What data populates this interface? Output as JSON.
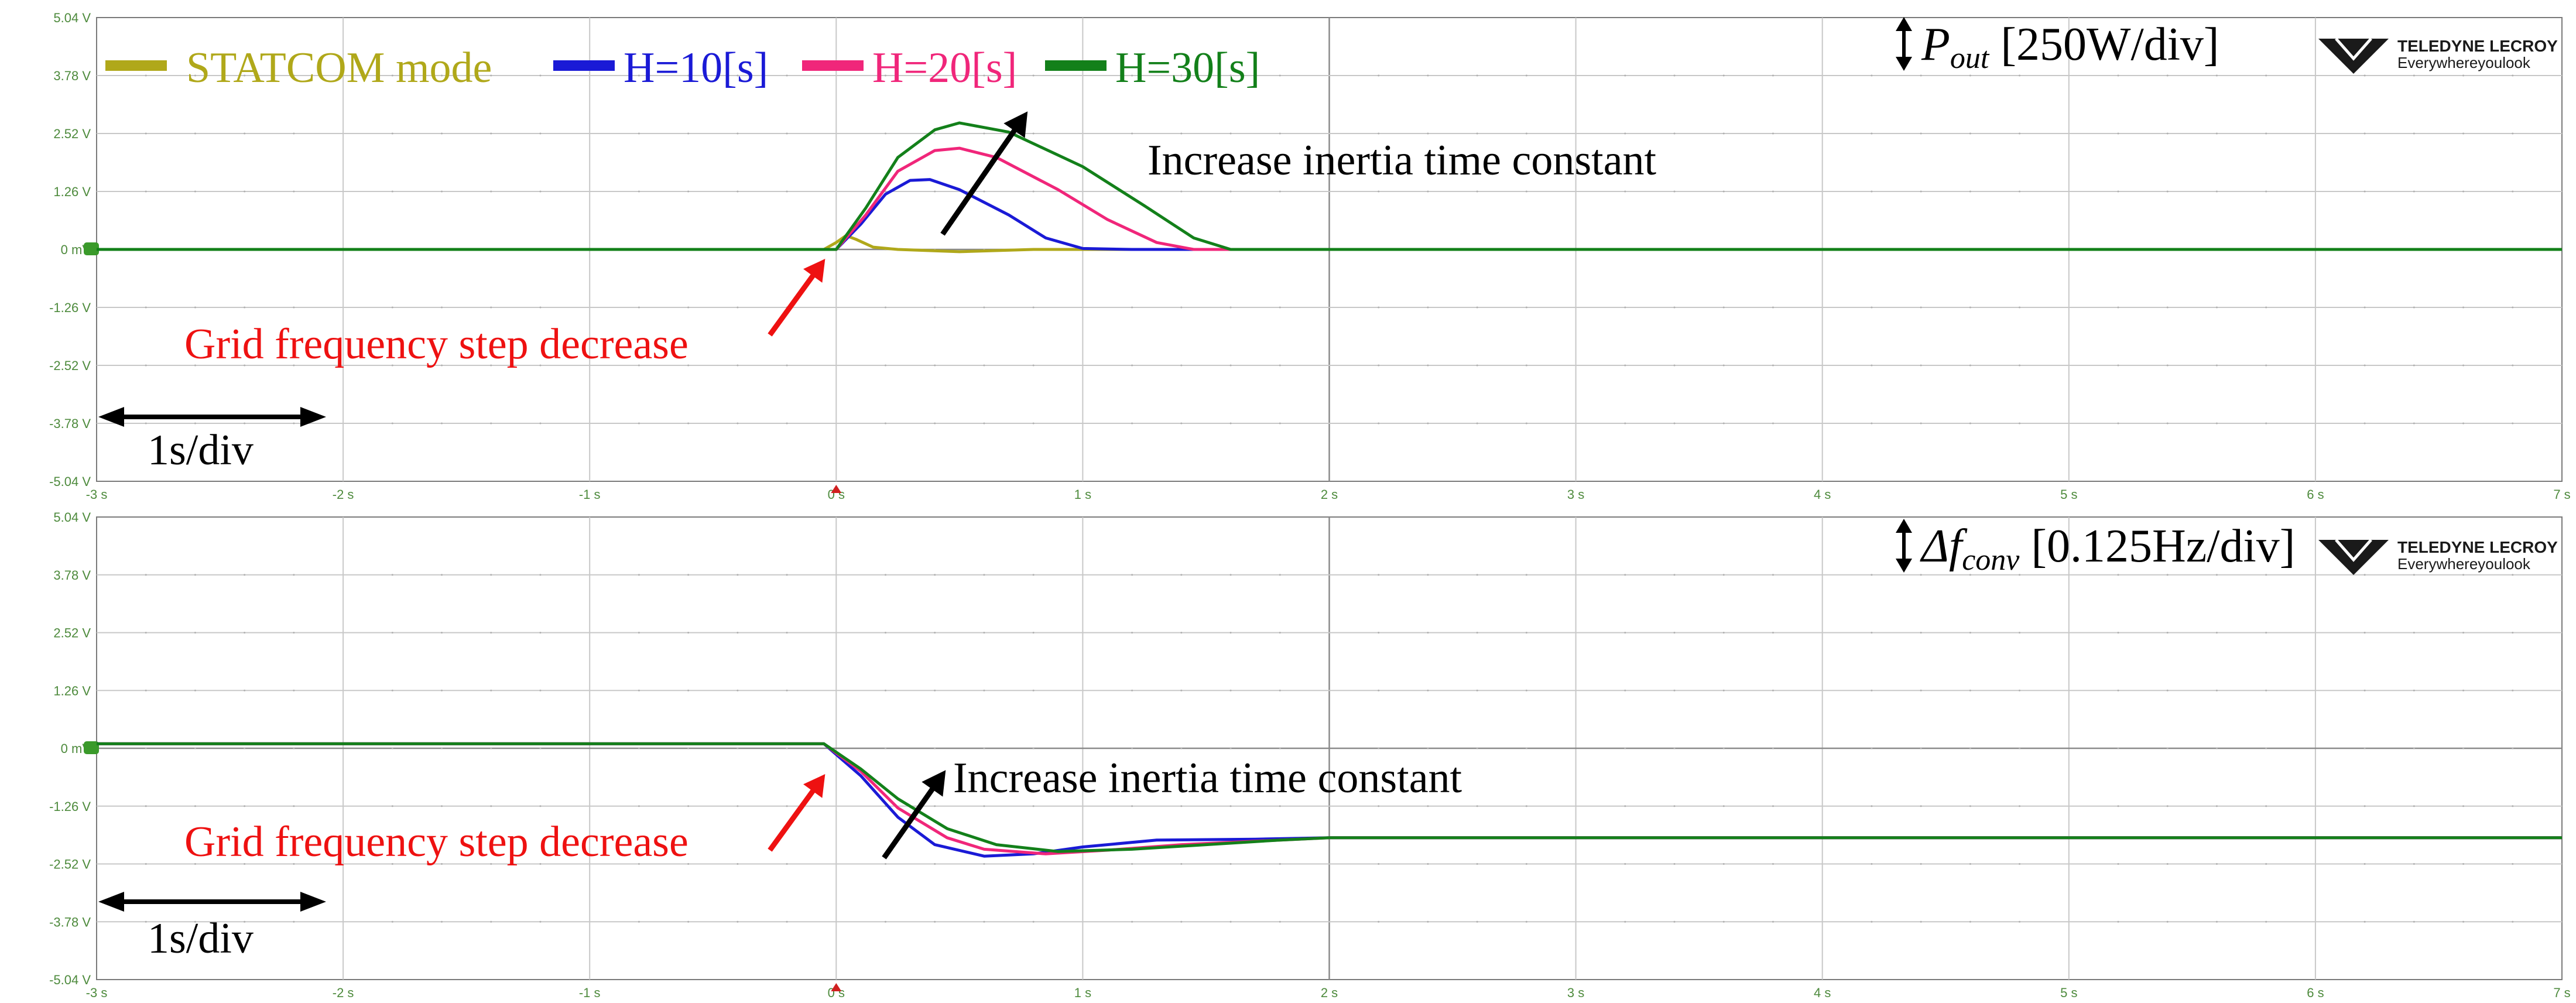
{
  "colors": {
    "statcom": "#b0a81a",
    "h10": "#1a1ad6",
    "h20": "#f0267a",
    "h30": "#13801a",
    "red_annotation": "#ee1111",
    "tick_labels": "#4d8a3c",
    "grid": "#c8c8c8",
    "axis": "#7a7a7a"
  },
  "legend": [
    {
      "label": "STATCOM mode",
      "color": "#b0a81a"
    },
    {
      "label": "H=10[s]",
      "color": "#1a1ad6"
    },
    {
      "label": "H=20[s]",
      "color": "#f0267a"
    },
    {
      "label": "H=30[s]",
      "color": "#13801a"
    }
  ],
  "logo": {
    "brand": "TELEDYNE LECROY",
    "tagline": "Everywhereyoulook"
  },
  "chart_data": [
    {
      "type": "line",
      "panel": "top",
      "scale_symbol": "P",
      "scale_subscript": "out",
      "scale_text": "[250W/div]",
      "x_ticks": [
        "-3 s",
        "-2 s",
        "-1 s",
        "0 s",
        "1 s",
        "2 s",
        "3 s",
        "4 s",
        "5 s",
        "6 s",
        "7 s"
      ],
      "y_ticks": [
        "5.04 V",
        "3.78 V",
        "2.52 V",
        "1.26 V",
        "0 mV",
        "-1.26 V",
        "-2.52 V",
        "-3.78 V",
        "-5.04 V"
      ],
      "xlim": [
        -3,
        7
      ],
      "ylim": [
        -5.04,
        5.04
      ],
      "annotations": {
        "inertia": "Increase inertia time constant",
        "grid_step": "Grid frequency step decrease",
        "timebase": "1s/div"
      },
      "series": [
        {
          "name": "STATCOM mode",
          "color": "#b0a81a",
          "points": [
            [
              -3,
              0
            ],
            [
              -0.05,
              0
            ],
            [
              0,
              0.15
            ],
            [
              0.04,
              0.3
            ],
            [
              0.08,
              0.22
            ],
            [
              0.15,
              0.05
            ],
            [
              0.25,
              0
            ],
            [
              0.5,
              -0.05
            ],
            [
              0.8,
              0
            ],
            [
              7,
              0
            ]
          ]
        },
        {
          "name": "H=10[s]",
          "color": "#1a1ad6",
          "points": [
            [
              -3,
              0
            ],
            [
              0,
              0
            ],
            [
              0.1,
              0.55
            ],
            [
              0.2,
              1.2
            ],
            [
              0.3,
              1.5
            ],
            [
              0.38,
              1.52
            ],
            [
              0.5,
              1.3
            ],
            [
              0.7,
              0.75
            ],
            [
              0.85,
              0.25
            ],
            [
              1.0,
              0.02
            ],
            [
              1.2,
              0
            ],
            [
              7,
              0
            ]
          ]
        },
        {
          "name": "H=20[s]",
          "color": "#f0267a",
          "points": [
            [
              -3,
              0
            ],
            [
              0,
              0
            ],
            [
              0.12,
              0.75
            ],
            [
              0.25,
              1.7
            ],
            [
              0.4,
              2.15
            ],
            [
              0.5,
              2.2
            ],
            [
              0.65,
              2.0
            ],
            [
              0.9,
              1.3
            ],
            [
              1.1,
              0.65
            ],
            [
              1.3,
              0.15
            ],
            [
              1.45,
              0
            ],
            [
              7,
              0
            ]
          ]
        },
        {
          "name": "H=30[s]",
          "color": "#13801a",
          "points": [
            [
              -3,
              0
            ],
            [
              0,
              0
            ],
            [
              0.12,
              0.9
            ],
            [
              0.25,
              2.0
            ],
            [
              0.4,
              2.6
            ],
            [
              0.5,
              2.75
            ],
            [
              0.7,
              2.55
            ],
            [
              1.0,
              1.8
            ],
            [
              1.25,
              0.95
            ],
            [
              1.45,
              0.25
            ],
            [
              1.6,
              0
            ],
            [
              7,
              0
            ]
          ]
        }
      ]
    },
    {
      "type": "line",
      "panel": "bottom",
      "scale_symbol": "Δf",
      "scale_subscript": "conv",
      "scale_text": "[0.125Hz/div]",
      "x_ticks": [
        "-3 s",
        "-2 s",
        "-1 s",
        "0 s",
        "1 s",
        "2 s",
        "3 s",
        "4 s",
        "5 s",
        "6 s",
        "7 s"
      ],
      "y_ticks": [
        "5.04 V",
        "3.78 V",
        "2.52 V",
        "1.26 V",
        "0 mV",
        "-1.26 V",
        "-2.52 V",
        "-3.78 V",
        "-5.04 V"
      ],
      "xlim": [
        -3,
        7
      ],
      "ylim": [
        -5.04,
        5.04
      ],
      "annotations": {
        "inertia": "Increase inertia time constant",
        "grid_step": "Grid frequency step decrease",
        "timebase": "1s/div"
      },
      "series": [
        {
          "name": "H=10[s]",
          "color": "#1a1ad6",
          "points": [
            [
              -3,
              0.1
            ],
            [
              -0.05,
              0.1
            ],
            [
              0.1,
              -0.6
            ],
            [
              0.25,
              -1.5
            ],
            [
              0.4,
              -2.1
            ],
            [
              0.6,
              -2.35
            ],
            [
              0.8,
              -2.3
            ],
            [
              1.0,
              -2.15
            ],
            [
              1.3,
              -2.0
            ],
            [
              1.7,
              -1.98
            ],
            [
              2,
              -1.95
            ],
            [
              7,
              -1.95
            ]
          ]
        },
        {
          "name": "H=20[s]",
          "color": "#f0267a",
          "points": [
            [
              -3,
              0.1
            ],
            [
              -0.05,
              0.1
            ],
            [
              0.1,
              -0.5
            ],
            [
              0.25,
              -1.3
            ],
            [
              0.45,
              -1.95
            ],
            [
              0.6,
              -2.2
            ],
            [
              0.85,
              -2.3
            ],
            [
              1.1,
              -2.22
            ],
            [
              1.4,
              -2.1
            ],
            [
              1.8,
              -2.0
            ],
            [
              2,
              -1.95
            ],
            [
              7,
              -1.95
            ]
          ]
        },
        {
          "name": "H=30[s]",
          "color": "#13801a",
          "points": [
            [
              -3,
              0.1
            ],
            [
              -0.05,
              0.1
            ],
            [
              0.1,
              -0.45
            ],
            [
              0.25,
              -1.1
            ],
            [
              0.45,
              -1.75
            ],
            [
              0.65,
              -2.1
            ],
            [
              0.9,
              -2.25
            ],
            [
              1.2,
              -2.2
            ],
            [
              1.5,
              -2.1
            ],
            [
              1.8,
              -2.0
            ],
            [
              2,
              -1.95
            ],
            [
              7,
              -1.95
            ]
          ]
        }
      ]
    }
  ]
}
